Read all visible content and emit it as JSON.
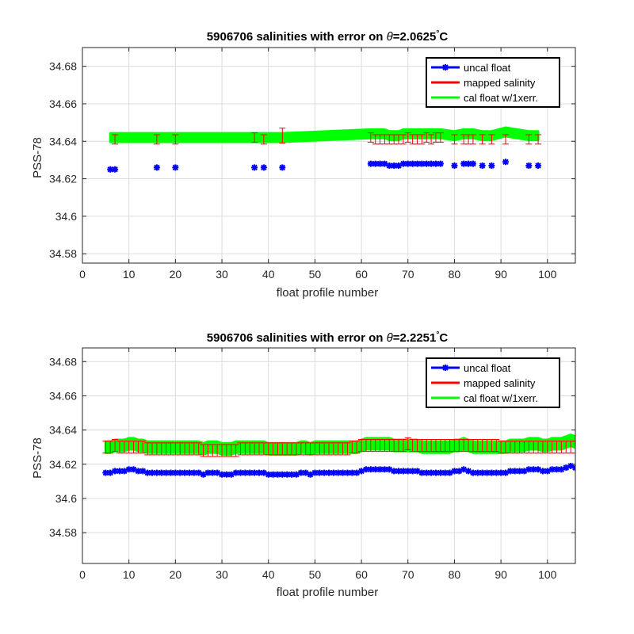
{
  "chart_data": [
    {
      "type": "line",
      "title": {
        "prefix": "5906706 salinities with error on ",
        "theta_symbol": "θ",
        "theta_value": "=2.0625",
        "degree": "°",
        "unit": "C"
      },
      "xlabel": "float profile number",
      "ylabel": "PSS-78",
      "xlim": [
        0,
        106
      ],
      "ylim": [
        34.575,
        34.69
      ],
      "xticks": [
        "0",
        "10",
        "20",
        "30",
        "40",
        "50",
        "60",
        "70",
        "80",
        "90",
        "100"
      ],
      "yticks": [
        "34.58",
        "34.6",
        "34.62",
        "34.64",
        "34.66",
        "34.68"
      ],
      "grid": true,
      "legend_position": "top-right",
      "legend": [
        "uncal float",
        "mapped salinity",
        "cal float w/1xerr."
      ],
      "colors": {
        "uncal": "#0000ff",
        "mapped": "#ff0000",
        "errorbar": "#ff0000",
        "cal": "#00ff00"
      },
      "series": [
        {
          "name": "uncal float",
          "x": [
            6,
            7,
            16,
            20,
            37,
            39,
            43,
            62,
            63,
            64,
            65,
            66,
            67,
            68,
            69,
            70,
            71,
            72,
            73,
            74,
            75,
            76,
            77,
            80,
            82,
            83,
            84,
            86,
            88,
            91,
            96,
            98
          ],
          "values": [
            34.625,
            34.625,
            34.626,
            34.626,
            34.626,
            34.626,
            34.626,
            34.628,
            34.628,
            34.628,
            34.628,
            34.627,
            34.627,
            34.627,
            34.628,
            34.628,
            34.628,
            34.628,
            34.628,
            34.628,
            34.628,
            34.628,
            34.628,
            34.627,
            34.628,
            34.628,
            34.628,
            34.627,
            34.627,
            34.629,
            34.627,
            34.627
          ]
        },
        {
          "name": "mapped salinity",
          "x": [
            7,
            16,
            20,
            37,
            39,
            43,
            62,
            63,
            64,
            65,
            66,
            67,
            68,
            69,
            70,
            71,
            72,
            73,
            74,
            75,
            76,
            77,
            80,
            82,
            83,
            84,
            86,
            88,
            91,
            96,
            98
          ],
          "values": [
            34.641,
            34.641,
            34.641,
            34.642,
            34.641,
            34.643,
            34.642,
            34.641,
            34.641,
            34.641,
            34.641,
            34.641,
            34.641,
            34.641,
            34.642,
            34.641,
            34.641,
            34.641,
            34.642,
            34.641,
            34.642,
            34.642,
            34.641,
            34.641,
            34.641,
            34.641,
            34.641,
            34.641,
            34.641,
            34.641,
            34.641
          ],
          "error": [
            0.0025,
            0.0025,
            0.0025,
            0.0025,
            0.0025,
            0.004,
            0.0025,
            0.0025,
            0.0025,
            0.0025,
            0.0025,
            0.0025,
            0.0025,
            0.0025,
            0.0025,
            0.0025,
            0.0025,
            0.0025,
            0.0025,
            0.0025,
            0.0025,
            0.0025,
            0.0025,
            0.0025,
            0.0025,
            0.0025,
            0.0025,
            0.0025,
            0.0025,
            0.0025,
            0.0025
          ]
        },
        {
          "name": "cal float w/1xerr.",
          "x": [
            6,
            7,
            16,
            20,
            37,
            39,
            43,
            62,
            63,
            64,
            65,
            66,
            67,
            68,
            69,
            70,
            71,
            72,
            73,
            74,
            75,
            76,
            77,
            80,
            82,
            83,
            84,
            86,
            88,
            91,
            96,
            98
          ],
          "values": [
            34.642,
            34.642,
            34.642,
            34.642,
            34.642,
            34.642,
            34.642,
            34.644,
            34.644,
            34.644,
            34.644,
            34.643,
            34.643,
            34.643,
            34.644,
            34.644,
            34.644,
            34.644,
            34.644,
            34.644,
            34.644,
            34.644,
            34.644,
            34.643,
            34.644,
            34.644,
            34.644,
            34.643,
            34.643,
            34.645,
            34.643,
            34.643
          ],
          "band": 0.0025
        }
      ]
    },
    {
      "type": "line",
      "title": {
        "prefix": "5906706 salinities with error on ",
        "theta_symbol": "θ",
        "theta_value": "=2.2251",
        "degree": "°",
        "unit": "C"
      },
      "xlabel": "float profile number",
      "ylabel": "PSS-78",
      "xlim": [
        0,
        106
      ],
      "ylim": [
        34.562,
        34.688
      ],
      "xticks": [
        "0",
        "10",
        "20",
        "30",
        "40",
        "50",
        "60",
        "70",
        "80",
        "90",
        "100"
      ],
      "yticks": [
        "34.58",
        "34.6",
        "34.62",
        "34.64",
        "34.66",
        "34.68"
      ],
      "grid": true,
      "legend_position": "top-right",
      "legend": [
        "uncal float",
        "mapped salinity",
        "cal float w/1xerr."
      ],
      "colors": {
        "uncal": "#0000ff",
        "mapped": "#ff0000",
        "errorbar": "#ff0000",
        "cal": "#00ff00"
      },
      "series": [
        {
          "name": "uncal float",
          "x": [
            5,
            6,
            7,
            8,
            9,
            10,
            11,
            12,
            13,
            14,
            15,
            16,
            17,
            18,
            19,
            20,
            21,
            22,
            23,
            24,
            25,
            26,
            27,
            28,
            29,
            30,
            31,
            32,
            33,
            34,
            35,
            36,
            37,
            38,
            39,
            40,
            41,
            42,
            43,
            44,
            45,
            46,
            47,
            48,
            49,
            50,
            51,
            52,
            53,
            54,
            55,
            56,
            57,
            58,
            59,
            60,
            61,
            62,
            63,
            64,
            65,
            66,
            67,
            68,
            69,
            70,
            71,
            72,
            73,
            74,
            75,
            76,
            77,
            78,
            79,
            80,
            81,
            82,
            83,
            84,
            85,
            86,
            87,
            88,
            89,
            90,
            91,
            92,
            93,
            94,
            95,
            96,
            97,
            98,
            99,
            100,
            101,
            102,
            103,
            104,
            105,
            106
          ],
          "values": [
            34.615,
            34.615,
            34.616,
            34.616,
            34.616,
            34.617,
            34.617,
            34.616,
            34.616,
            34.615,
            34.615,
            34.615,
            34.615,
            34.615,
            34.615,
            34.615,
            34.615,
            34.615,
            34.615,
            34.615,
            34.615,
            34.614,
            34.615,
            34.615,
            34.615,
            34.614,
            34.614,
            34.614,
            34.615,
            34.615,
            34.615,
            34.615,
            34.615,
            34.615,
            34.615,
            34.614,
            34.614,
            34.614,
            34.614,
            34.614,
            34.614,
            34.614,
            34.615,
            34.615,
            34.614,
            34.615,
            34.615,
            34.615,
            34.615,
            34.615,
            34.615,
            34.615,
            34.615,
            34.615,
            34.615,
            34.616,
            34.617,
            34.617,
            34.617,
            34.617,
            34.617,
            34.617,
            34.616,
            34.616,
            34.616,
            34.616,
            34.616,
            34.616,
            34.615,
            34.615,
            34.615,
            34.615,
            34.615,
            34.615,
            34.615,
            34.616,
            34.616,
            34.617,
            34.616,
            34.615,
            34.615,
            34.615,
            34.615,
            34.615,
            34.615,
            34.615,
            34.615,
            34.616,
            34.616,
            34.616,
            34.616,
            34.617,
            34.617,
            34.617,
            34.616,
            34.616,
            34.617,
            34.617,
            34.617,
            34.618,
            34.619,
            34.618
          ]
        },
        {
          "name": "mapped salinity",
          "x": [
            5,
            6,
            7,
            8,
            9,
            10,
            11,
            12,
            13,
            14,
            15,
            16,
            17,
            18,
            19,
            20,
            21,
            22,
            23,
            24,
            25,
            26,
            27,
            28,
            29,
            30,
            31,
            32,
            33,
            34,
            35,
            36,
            37,
            38,
            39,
            40,
            41,
            42,
            43,
            44,
            45,
            46,
            47,
            48,
            49,
            50,
            51,
            52,
            53,
            54,
            55,
            56,
            57,
            58,
            59,
            60,
            61,
            62,
            63,
            64,
            65,
            66,
            67,
            68,
            69,
            70,
            71,
            72,
            73,
            74,
            75,
            76,
            77,
            78,
            79,
            80,
            81,
            82,
            83,
            84,
            85,
            86,
            87,
            88,
            89,
            90,
            91,
            92,
            93,
            94,
            95,
            96,
            97,
            98,
            99,
            100,
            101,
            102,
            103,
            104,
            105,
            106
          ],
          "values": [
            34.63,
            34.63,
            34.631,
            34.63,
            34.63,
            34.63,
            34.63,
            34.63,
            34.63,
            34.629,
            34.629,
            34.629,
            34.629,
            34.629,
            34.629,
            34.629,
            34.629,
            34.629,
            34.629,
            34.629,
            34.629,
            34.628,
            34.628,
            34.628,
            34.628,
            34.628,
            34.628,
            34.628,
            34.628,
            34.629,
            34.629,
            34.629,
            34.629,
            34.629,
            34.629,
            34.629,
            34.629,
            34.629,
            34.629,
            34.629,
            34.629,
            34.629,
            34.629,
            34.629,
            34.629,
            34.629,
            34.629,
            34.629,
            34.629,
            34.629,
            34.629,
            34.629,
            34.629,
            34.63,
            34.63,
            34.631,
            34.631,
            34.631,
            34.631,
            34.631,
            34.631,
            34.631,
            34.631,
            34.631,
            34.631,
            34.632,
            34.631,
            34.631,
            34.631,
            34.631,
            34.631,
            34.631,
            34.631,
            34.631,
            34.631,
            34.631,
            34.631,
            34.631,
            34.631,
            34.631,
            34.631,
            34.631,
            34.631,
            34.631,
            34.631,
            34.63,
            34.63,
            34.63,
            34.63,
            34.63,
            34.63,
            34.63,
            34.63,
            34.63,
            34.63,
            34.63,
            34.63,
            34.63,
            34.63,
            34.63,
            34.63,
            34.63
          ],
          "error": 0.0035
        },
        {
          "name": "cal float w/1xerr.",
          "x": [
            5,
            6,
            7,
            8,
            9,
            10,
            11,
            12,
            13,
            14,
            15,
            16,
            17,
            18,
            19,
            20,
            21,
            22,
            23,
            24,
            25,
            26,
            27,
            28,
            29,
            30,
            31,
            32,
            33,
            34,
            35,
            36,
            37,
            38,
            39,
            40,
            41,
            42,
            43,
            44,
            45,
            46,
            47,
            48,
            49,
            50,
            51,
            52,
            53,
            54,
            55,
            56,
            57,
            58,
            59,
            60,
            61,
            62,
            63,
            64,
            65,
            66,
            67,
            68,
            69,
            70,
            71,
            72,
            73,
            74,
            75,
            76,
            77,
            78,
            79,
            80,
            81,
            82,
            83,
            84,
            85,
            86,
            87,
            88,
            89,
            90,
            91,
            92,
            93,
            94,
            95,
            96,
            97,
            98,
            99,
            100,
            101,
            102,
            103,
            104,
            105,
            106
          ],
          "values": [
            34.63,
            34.63,
            34.631,
            34.631,
            34.631,
            34.632,
            34.632,
            34.631,
            34.631,
            34.63,
            34.63,
            34.63,
            34.63,
            34.63,
            34.63,
            34.63,
            34.63,
            34.63,
            34.63,
            34.63,
            34.63,
            34.629,
            34.63,
            34.63,
            34.63,
            34.629,
            34.629,
            34.629,
            34.63,
            34.63,
            34.63,
            34.63,
            34.63,
            34.63,
            34.63,
            34.629,
            34.629,
            34.629,
            34.629,
            34.629,
            34.629,
            34.629,
            34.63,
            34.63,
            34.629,
            34.63,
            34.63,
            34.63,
            34.63,
            34.63,
            34.63,
            34.63,
            34.63,
            34.63,
            34.63,
            34.631,
            34.632,
            34.632,
            34.632,
            34.632,
            34.632,
            34.632,
            34.631,
            34.631,
            34.631,
            34.631,
            34.631,
            34.631,
            34.63,
            34.63,
            34.63,
            34.63,
            34.63,
            34.63,
            34.63,
            34.631,
            34.631,
            34.632,
            34.631,
            34.63,
            34.63,
            34.63,
            34.63,
            34.63,
            34.63,
            34.63,
            34.63,
            34.631,
            34.631,
            34.631,
            34.631,
            34.632,
            34.632,
            34.632,
            34.631,
            34.631,
            34.632,
            34.632,
            34.632,
            34.633,
            34.634,
            34.633
          ],
          "band": 0.0035
        }
      ]
    }
  ]
}
